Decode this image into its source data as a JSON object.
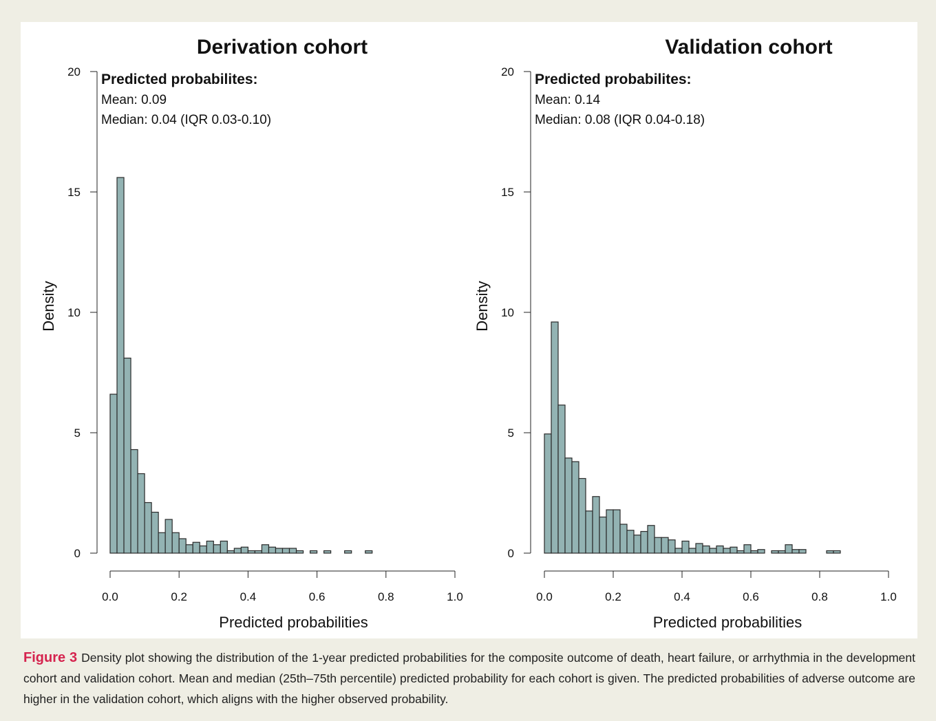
{
  "chart_data": [
    {
      "type": "histogram",
      "title": "Derivation cohort",
      "x_label": "Predicted probabilities",
      "y_label": "Density",
      "annotations": [
        "Predicted probabilites:",
        "Mean: 0.09",
        "Median: 0.04 (IQR 0.03-0.10)"
      ],
      "color": "#93b3b3",
      "bins": [
        0,
        0.02,
        0.04,
        0.06,
        0.08,
        0.1,
        0.12,
        0.14,
        0.16,
        0.18,
        0.2,
        0.22,
        0.24,
        0.26,
        0.28,
        0.3,
        0.32,
        0.34,
        0.36,
        0.38,
        0.4,
        0.42,
        0.44,
        0.46,
        0.48,
        0.5,
        0.52,
        0.54,
        0.56,
        0.58,
        0.6,
        0.62,
        0.64,
        0.66,
        0.68,
        0.7,
        0.72,
        0.74,
        0.76
      ],
      "values": [
        6.6,
        15.6,
        8.1,
        4.3,
        3.3,
        2.1,
        1.7,
        0.85,
        1.4,
        0.85,
        0.6,
        0.35,
        0.45,
        0.3,
        0.5,
        0.35,
        0.5,
        0.1,
        0.2,
        0.25,
        0.1,
        0.1,
        0.35,
        0.25,
        0.2,
        0.2,
        0.2,
        0.1,
        0,
        0.1,
        0,
        0.1,
        0,
        0,
        0.1,
        0,
        0,
        0.1
      ],
      "xlim": [
        0,
        1
      ],
      "xticks": [
        {
          "value": 0,
          "label": "0.0"
        },
        0.2,
        0.4,
        0.6,
        0.8,
        {
          "value": 1,
          "label": "1.0"
        }
      ],
      "ylim": [
        0,
        20
      ],
      "yticks": [
        0,
        5,
        10,
        15,
        20
      ]
    },
    {
      "type": "histogram",
      "title": "Validation cohort",
      "x_label": "Predicted probabilities",
      "y_label": "Density",
      "annotations": [
        "Predicted probabilites:",
        "Mean: 0.14",
        "Median: 0.08 (IQR 0.04-0.18)"
      ],
      "color": "#93b3b3",
      "bins": [
        0,
        0.02,
        0.04,
        0.06,
        0.08,
        0.1,
        0.12,
        0.14,
        0.16,
        0.18,
        0.2,
        0.22,
        0.24,
        0.26,
        0.28,
        0.3,
        0.32,
        0.34,
        0.36,
        0.38,
        0.4,
        0.42,
        0.44,
        0.46,
        0.48,
        0.5,
        0.52,
        0.54,
        0.56,
        0.58,
        0.6,
        0.62,
        0.64,
        0.66,
        0.68,
        0.7,
        0.72,
        0.74,
        0.76,
        0.78,
        0.8,
        0.82,
        0.84,
        0.86
      ],
      "values": [
        4.95,
        9.6,
        6.15,
        3.95,
        3.8,
        3.1,
        1.75,
        2.35,
        1.5,
        1.8,
        1.8,
        1.2,
        0.95,
        0.75,
        0.9,
        1.15,
        0.65,
        0.65,
        0.55,
        0.2,
        0.5,
        0.2,
        0.4,
        0.3,
        0.2,
        0.3,
        0.2,
        0.25,
        0.1,
        0.35,
        0.1,
        0.15,
        0,
        0.1,
        0.1,
        0.35,
        0.15,
        0.15,
        0,
        0,
        0,
        0.1,
        0.1
      ],
      "xlim": [
        0,
        1
      ],
      "xticks": [
        {
          "value": 0,
          "label": "0.0"
        },
        0.2,
        0.4,
        0.6,
        0.8,
        {
          "value": 1,
          "label": "1.0"
        }
      ],
      "ylim": [
        0,
        20
      ],
      "yticks": [
        0,
        5,
        10,
        15,
        20
      ]
    }
  ],
  "figure": {
    "label": "Figure 3",
    "caption": "Density plot showing the distribution of the 1-year predicted probabilities for the composite outcome of death, heart failure, or arrhythmia in the development cohort and validation cohort. Mean and median (25th–75th percentile) predicted probability for each cohort is given. The predicted probabilities of adverse outcome are higher in the validation cohort, which aligns with the higher observed probability."
  }
}
